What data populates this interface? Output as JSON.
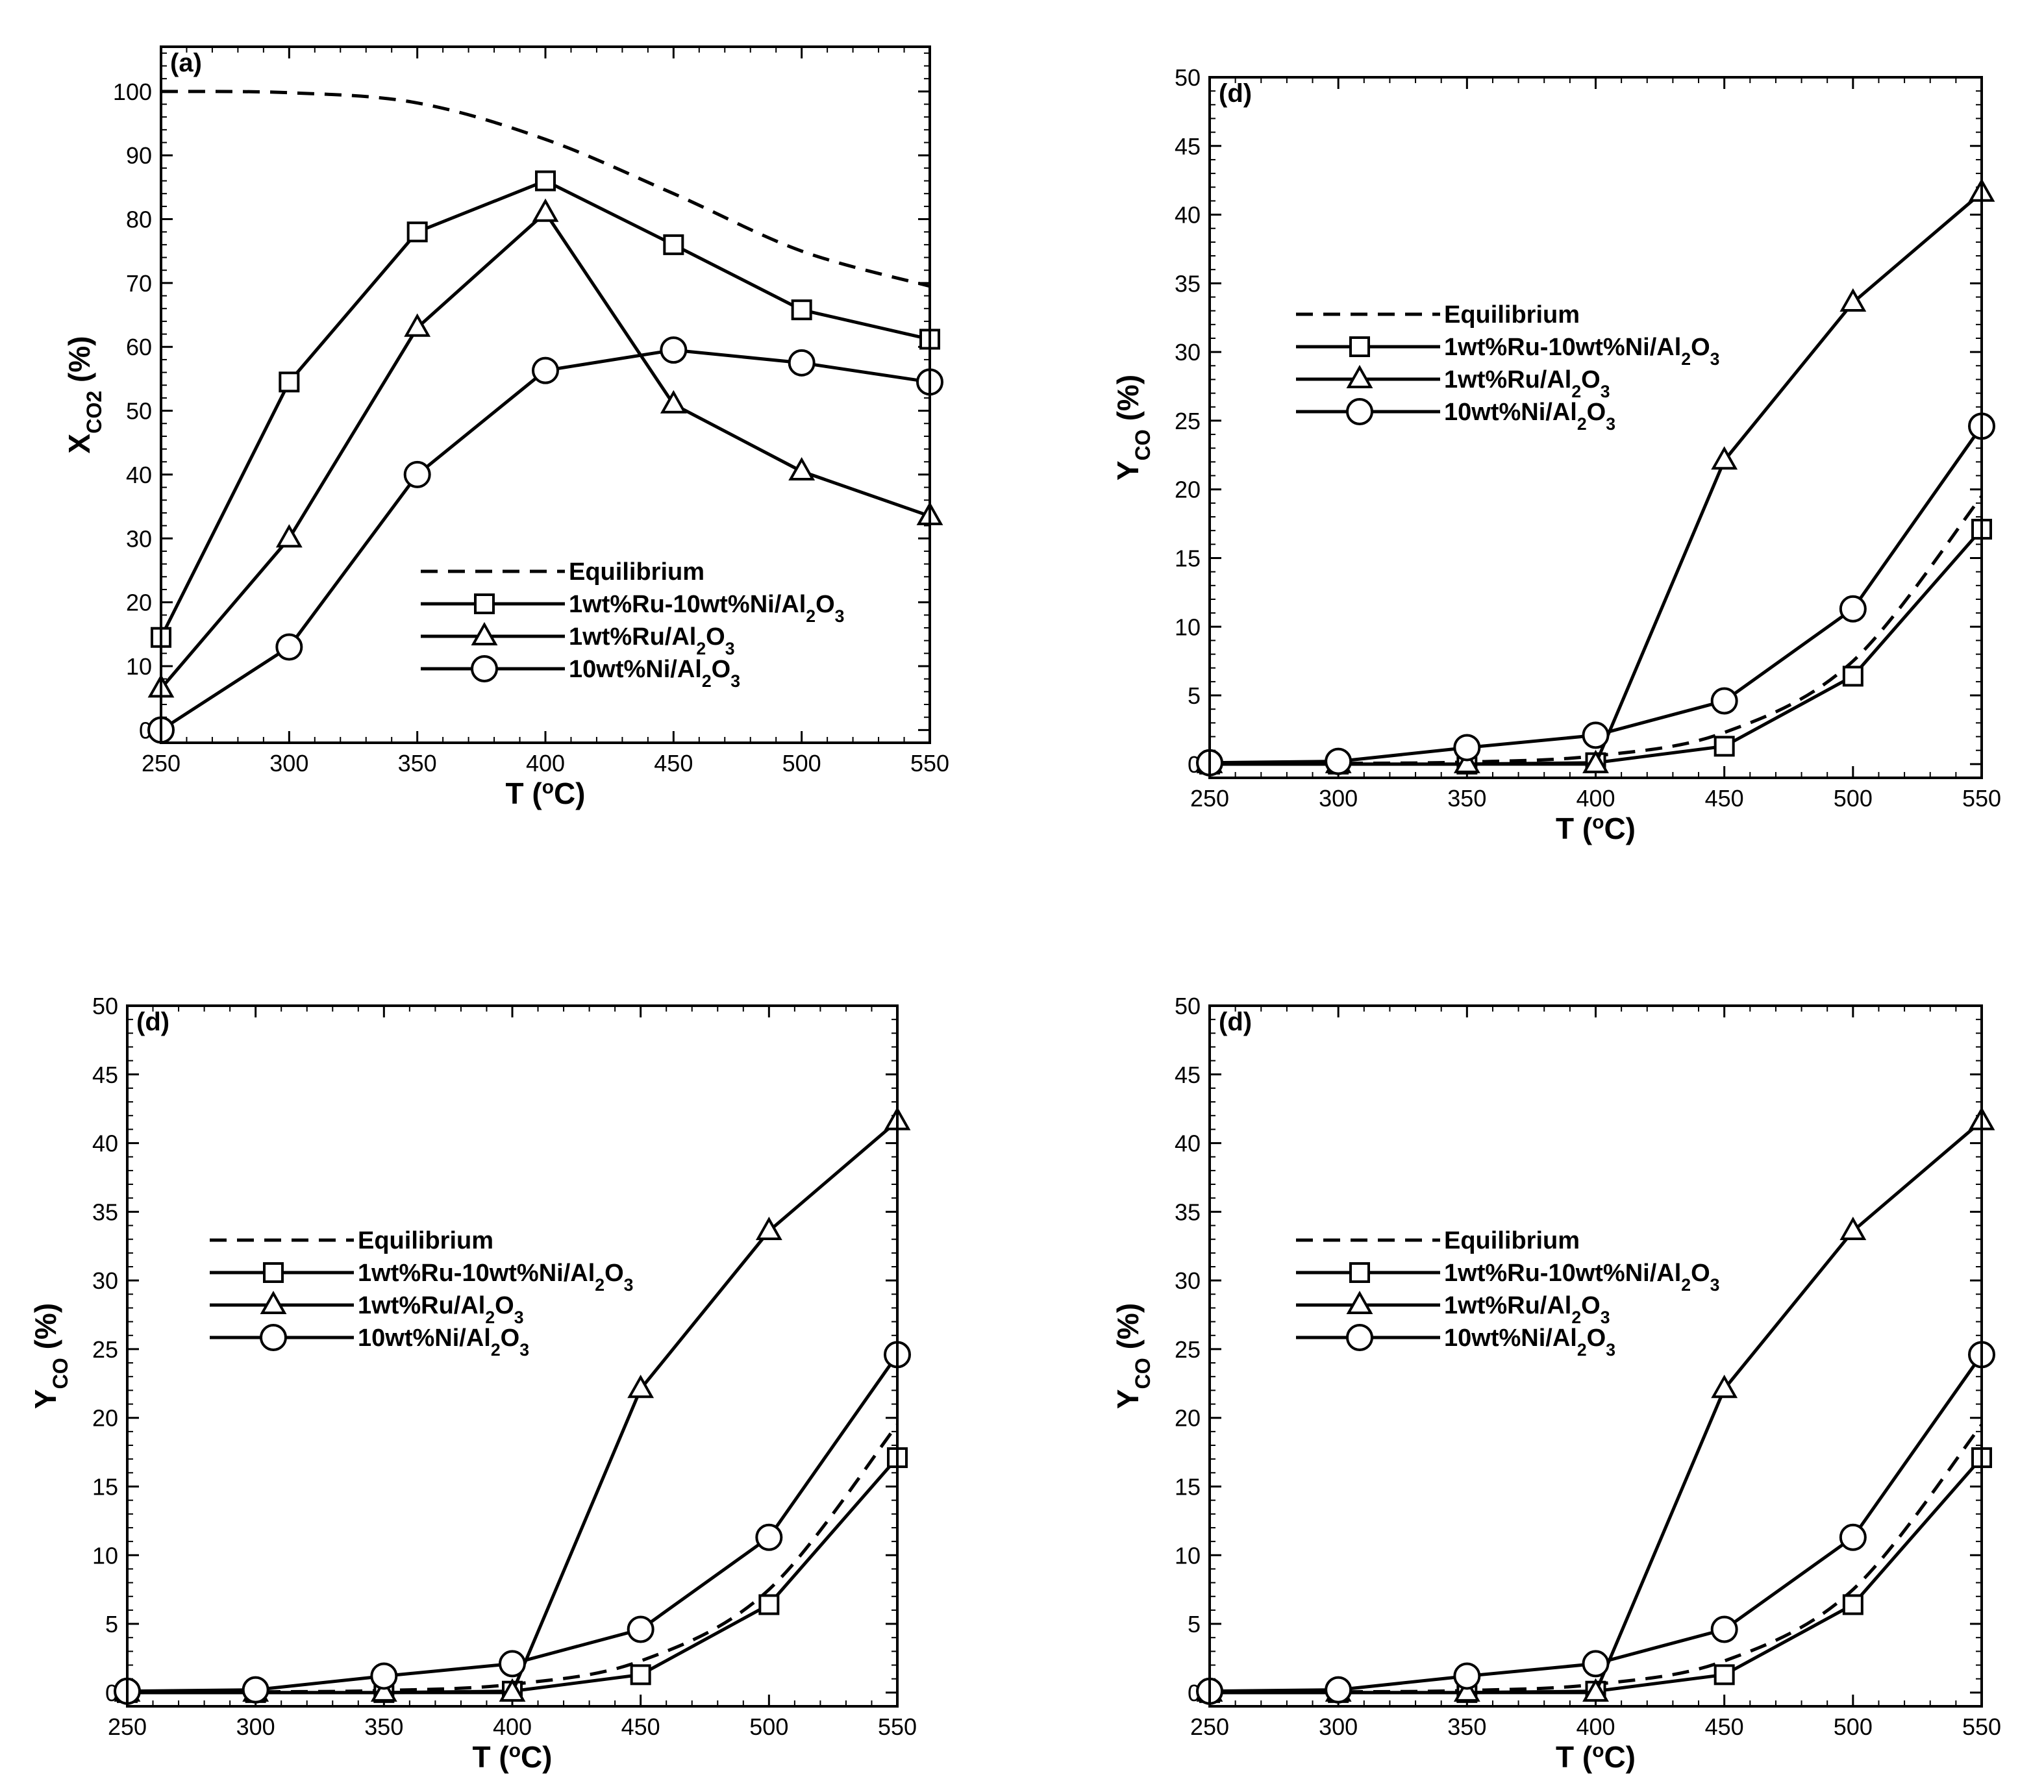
{
  "chart_data": [
    {
      "type": "line",
      "panel_label": "(a)",
      "xlabel": "T (°C)",
      "ylabel_main": "X",
      "ylabel_sub": "CO2",
      "ylabel_tail": " (%)",
      "xlim": [
        250,
        550
      ],
      "ylim": [
        -2,
        107
      ],
      "xticks": [
        250,
        300,
        350,
        400,
        450,
        500,
        550
      ],
      "yticks": [
        0,
        10,
        20,
        30,
        40,
        50,
        60,
        70,
        80,
        90,
        100
      ],
      "legend_position": "lower-right",
      "series": [
        {
          "name": "Equilibrium",
          "label_segments": [
            [
              "Equilibrium",
              ""
            ]
          ],
          "style": "dashed",
          "marker": "none",
          "x": [
            250,
            300,
            350,
            400,
            450,
            500,
            550
          ],
          "values": [
            100,
            99.8,
            98.2,
            92.5,
            84,
            75,
            69.5
          ]
        },
        {
          "name": "1wt%Ru-10wt%Ni/Al2O3",
          "label_segments": [
            [
              "1wt%Ru-10wt%Ni/Al",
              ""
            ],
            [
              "2",
              "sub"
            ],
            [
              "O",
              ""
            ],
            [
              "3",
              "sub"
            ]
          ],
          "style": "solid",
          "marker": "square",
          "x": [
            250,
            300,
            350,
            400,
            450,
            500,
            550
          ],
          "values": [
            14.5,
            54.5,
            78,
            86,
            76,
            65.8,
            61.2
          ]
        },
        {
          "name": "1wt%Ru/Al2O3",
          "label_segments": [
            [
              "1wt%Ru/Al",
              ""
            ],
            [
              "2",
              "sub"
            ],
            [
              "O",
              ""
            ],
            [
              "3",
              "sub"
            ]
          ],
          "style": "solid",
          "marker": "triangle",
          "x": [
            250,
            300,
            350,
            400,
            450,
            500,
            550
          ],
          "values": [
            6.5,
            30,
            63,
            81,
            51,
            40.5,
            33.5
          ]
        },
        {
          "name": "10wt%Ni/Al2O3",
          "label_segments": [
            [
              "10wt%Ni/Al",
              ""
            ],
            [
              "2",
              "sub"
            ],
            [
              "O",
              ""
            ],
            [
              "3",
              "sub"
            ]
          ],
          "style": "solid",
          "marker": "circle",
          "x": [
            250,
            300,
            350,
            400,
            450,
            500,
            550
          ],
          "values": [
            0,
            13,
            40,
            56.3,
            59.5,
            57.5,
            54.5
          ]
        }
      ]
    },
    {
      "type": "line",
      "panel_label": "(d)",
      "xlabel": "T (°C)",
      "ylabel_main": "Y",
      "ylabel_sub": "CO",
      "ylabel_tail": " (%)",
      "xlim": [
        250,
        550
      ],
      "ylim": [
        -1,
        50
      ],
      "xticks": [
        250,
        300,
        350,
        400,
        450,
        500,
        550
      ],
      "yticks": [
        0,
        5,
        10,
        15,
        20,
        25,
        30,
        35,
        40,
        45,
        50
      ],
      "legend_position": "upper-left",
      "series": [
        {
          "name": "Equilibrium",
          "label_segments": [
            [
              "Equilibrium",
              ""
            ]
          ],
          "style": "dashed",
          "marker": "none",
          "x": [
            250,
            300,
            350,
            400,
            450,
            500,
            550
          ],
          "values": [
            0,
            0.05,
            0.15,
            0.6,
            2.3,
            7.5,
            19.5
          ]
        },
        {
          "name": "1wt%Ru-10wt%Ni/Al2O3",
          "label_segments": [
            [
              "1wt%Ru-10wt%Ni/Al",
              ""
            ],
            [
              "2",
              "sub"
            ],
            [
              "O",
              ""
            ],
            [
              "3",
              "sub"
            ]
          ],
          "style": "solid",
          "marker": "square",
          "x": [
            250,
            300,
            350,
            400,
            450,
            500,
            550
          ],
          "values": [
            0,
            0,
            0,
            0.1,
            1.3,
            6.4,
            17.1
          ]
        },
        {
          "name": "1wt%Ru/Al2O3",
          "label_segments": [
            [
              "1wt%Ru/Al",
              ""
            ],
            [
              "2",
              "sub"
            ],
            [
              "O",
              ""
            ],
            [
              "3",
              "sub"
            ]
          ],
          "style": "solid",
          "marker": "triangle",
          "x": [
            250,
            300,
            350,
            400,
            450,
            500,
            550
          ],
          "values": [
            0,
            0,
            0,
            0,
            22.1,
            33.6,
            41.6
          ]
        },
        {
          "name": "10wt%Ni/Al2O3",
          "label_segments": [
            [
              "10wt%Ni/Al",
              ""
            ],
            [
              "2",
              "sub"
            ],
            [
              "O",
              ""
            ],
            [
              "3",
              "sub"
            ]
          ],
          "style": "solid",
          "marker": "circle",
          "x": [
            250,
            300,
            350,
            400,
            450,
            500,
            550
          ],
          "values": [
            0.1,
            0.2,
            1.2,
            2.1,
            4.6,
            11.3,
            24.6
          ]
        }
      ]
    },
    {
      "type": "line",
      "panel_label": "(d)",
      "xlabel": "T (°C)",
      "ylabel_main": "Y",
      "ylabel_sub": "CO",
      "ylabel_tail": " (%)",
      "xlim": [
        250,
        550
      ],
      "ylim": [
        -1,
        50
      ],
      "xticks": [
        250,
        300,
        350,
        400,
        450,
        500,
        550
      ],
      "yticks": [
        0,
        5,
        10,
        15,
        20,
        25,
        30,
        35,
        40,
        45,
        50
      ],
      "legend_position": "upper-left",
      "series": [
        {
          "name": "Equilibrium",
          "label_segments": [
            [
              "Equilibrium",
              ""
            ]
          ],
          "style": "dashed",
          "marker": "none",
          "x": [
            250,
            300,
            350,
            400,
            450,
            500,
            550
          ],
          "values": [
            0,
            0.05,
            0.15,
            0.6,
            2.3,
            7.5,
            19.5
          ]
        },
        {
          "name": "1wt%Ru-10wt%Ni/Al2O3",
          "label_segments": [
            [
              "1wt%Ru-10wt%Ni/Al",
              ""
            ],
            [
              "2",
              "sub"
            ],
            [
              "O",
              ""
            ],
            [
              "3",
              "sub"
            ]
          ],
          "style": "solid",
          "marker": "square",
          "x": [
            250,
            300,
            350,
            400,
            450,
            500,
            550
          ],
          "values": [
            0,
            0,
            0,
            0.1,
            1.3,
            6.4,
            17.1
          ]
        },
        {
          "name": "1wt%Ru/Al2O3",
          "label_segments": [
            [
              "1wt%Ru/Al",
              ""
            ],
            [
              "2",
              "sub"
            ],
            [
              "O",
              ""
            ],
            [
              "3",
              "sub"
            ]
          ],
          "style": "solid",
          "marker": "triangle",
          "x": [
            250,
            300,
            350,
            400,
            450,
            500,
            550
          ],
          "values": [
            0,
            0,
            0,
            0,
            22.1,
            33.6,
            41.6
          ]
        },
        {
          "name": "10wt%Ni/Al2O3",
          "label_segments": [
            [
              "10wt%Ni/Al",
              ""
            ],
            [
              "2",
              "sub"
            ],
            [
              "O",
              ""
            ],
            [
              "3",
              "sub"
            ]
          ],
          "style": "solid",
          "marker": "circle",
          "x": [
            250,
            300,
            350,
            400,
            450,
            500,
            550
          ],
          "values": [
            0.1,
            0.2,
            1.2,
            2.1,
            4.6,
            11.3,
            24.6
          ]
        }
      ]
    },
    {
      "type": "line",
      "panel_label": "(d)",
      "xlabel": "T (°C)",
      "ylabel_main": "Y",
      "ylabel_sub": "CO",
      "ylabel_tail": " (%)",
      "xlim": [
        250,
        550
      ],
      "ylim": [
        -1,
        50
      ],
      "xticks": [
        250,
        300,
        350,
        400,
        450,
        500,
        550
      ],
      "yticks": [
        0,
        5,
        10,
        15,
        20,
        25,
        30,
        35,
        40,
        45,
        50
      ],
      "legend_position": "upper-left",
      "series": [
        {
          "name": "Equilibrium",
          "label_segments": [
            [
              "Equilibrium",
              ""
            ]
          ],
          "style": "dashed",
          "marker": "none",
          "x": [
            250,
            300,
            350,
            400,
            450,
            500,
            550
          ],
          "values": [
            0,
            0.05,
            0.15,
            0.6,
            2.3,
            7.5,
            19.5
          ]
        },
        {
          "name": "1wt%Ru-10wt%Ni/Al2O3",
          "label_segments": [
            [
              "1wt%Ru-10wt%Ni/Al",
              ""
            ],
            [
              "2",
              "sub"
            ],
            [
              "O",
              ""
            ],
            [
              "3",
              "sub"
            ]
          ],
          "style": "solid",
          "marker": "square",
          "x": [
            250,
            300,
            350,
            400,
            450,
            500,
            550
          ],
          "values": [
            0,
            0,
            0,
            0.1,
            1.3,
            6.4,
            17.1
          ]
        },
        {
          "name": "1wt%Ru/Al2O3",
          "label_segments": [
            [
              "1wt%Ru/Al",
              ""
            ],
            [
              "2",
              "sub"
            ],
            [
              "O",
              ""
            ],
            [
              "3",
              "sub"
            ]
          ],
          "style": "solid",
          "marker": "triangle",
          "x": [
            250,
            300,
            350,
            400,
            450,
            500,
            550
          ],
          "values": [
            0,
            0,
            0,
            0,
            22.1,
            33.6,
            41.6
          ]
        },
        {
          "name": "10wt%Ni/Al2O3",
          "label_segments": [
            [
              "10wt%Ni/Al",
              ""
            ],
            [
              "2",
              "sub"
            ],
            [
              "O",
              ""
            ],
            [
              "3",
              "sub"
            ]
          ],
          "style": "solid",
          "marker": "circle",
          "x": [
            250,
            300,
            350,
            400,
            450,
            500,
            550
          ],
          "values": [
            0.1,
            0.2,
            1.2,
            2.1,
            4.6,
            11.3,
            24.6
          ]
        }
      ]
    }
  ]
}
